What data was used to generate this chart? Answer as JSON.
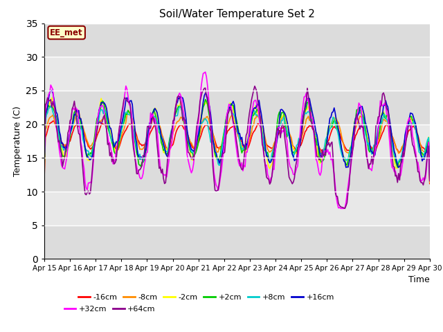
{
  "title": "Soil/Water Temperature Set 2",
  "xlabel": "Time",
  "ylabel": "Temperature (C)",
  "ylim": [
    0,
    35
  ],
  "yticks": [
    0,
    5,
    10,
    15,
    20,
    25,
    30,
    35
  ],
  "fig_bg": "#ffffff",
  "plot_bg": "#e8e8e8",
  "annotation_text": "EE_met",
  "annotation_bg": "#ffffcc",
  "annotation_border": "#8b0000",
  "x_labels": [
    "Apr 15",
    "Apr 16",
    "Apr 17",
    "Apr 18",
    "Apr 19",
    "Apr 20",
    "Apr 21",
    "Apr 22",
    "Apr 23",
    "Apr 24",
    "Apr 25",
    "Apr 26",
    "Apr 27",
    "Apr 28",
    "Apr 29",
    "Apr 30"
  ],
  "series_order": [
    "-16cm",
    "-8cm",
    "-2cm",
    "+2cm",
    "+8cm",
    "+16cm",
    "+32cm",
    "+64cm"
  ],
  "series": {
    "-16cm": {
      "color": "#ff0000",
      "lw": 1.2
    },
    "-8cm": {
      "color": "#ff8c00",
      "lw": 1.2
    },
    "-2cm": {
      "color": "#ffff00",
      "lw": 1.2
    },
    "+2cm": {
      "color": "#00cc00",
      "lw": 1.2
    },
    "+8cm": {
      "color": "#00cccc",
      "lw": 1.2
    },
    "+16cm": {
      "color": "#0000cd",
      "lw": 1.2
    },
    "+32cm": {
      "color": "#ff00ff",
      "lw": 1.2
    },
    "+64cm": {
      "color": "#8b008b",
      "lw": 1.2
    }
  },
  "band_colors": [
    "#dcdcdc",
    "#e8e8e8"
  ],
  "band_ranges": [
    [
      0,
      5
    ],
    [
      5,
      10
    ],
    [
      10,
      15
    ],
    [
      15,
      20
    ],
    [
      20,
      25
    ],
    [
      25,
      30
    ],
    [
      30,
      35
    ]
  ]
}
